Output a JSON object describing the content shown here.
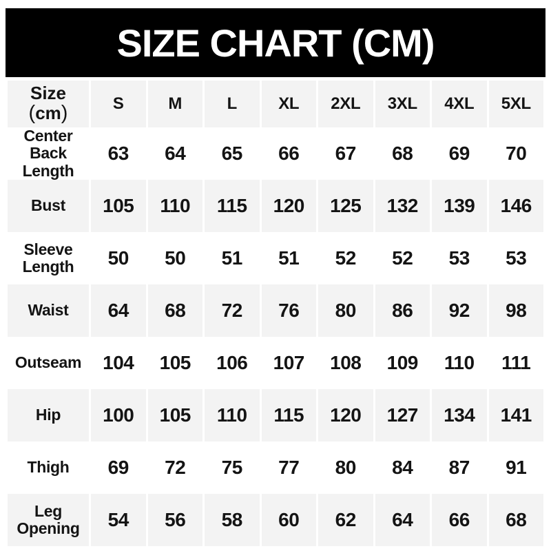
{
  "banner": {
    "title": "SIZE CHART (CM)"
  },
  "table": {
    "corner": {
      "line1": "Size",
      "open": "(",
      "unit": "cm",
      "close": ")"
    }
  },
  "chart_data": {
    "type": "table",
    "title": "SIZE CHART (CM)",
    "unit": "cm",
    "corner_label": "Size (cm)",
    "columns": [
      "S",
      "M",
      "L",
      "XL",
      "2XL",
      "3XL",
      "4XL",
      "5XL"
    ],
    "rows": [
      {
        "label": "Center Back Length",
        "values": [
          63,
          64,
          65,
          66,
          67,
          68,
          69,
          70
        ]
      },
      {
        "label": "Bust",
        "values": [
          105,
          110,
          115,
          120,
          125,
          132,
          139,
          146
        ]
      },
      {
        "label": "Sleeve Length",
        "values": [
          50,
          50,
          51,
          51,
          52,
          52,
          53,
          53
        ]
      },
      {
        "label": "Waist",
        "values": [
          64,
          68,
          72,
          76,
          80,
          86,
          92,
          98
        ]
      },
      {
        "label": "Outseam",
        "values": [
          104,
          105,
          106,
          107,
          108,
          109,
          110,
          111
        ]
      },
      {
        "label": "Hip",
        "values": [
          100,
          105,
          110,
          115,
          120,
          127,
          134,
          141
        ]
      },
      {
        "label": "Thigh",
        "values": [
          69,
          72,
          75,
          77,
          80,
          84,
          87,
          91
        ]
      },
      {
        "label": "Leg Opening",
        "values": [
          54,
          56,
          58,
          60,
          62,
          64,
          66,
          68
        ]
      }
    ],
    "layout": {
      "striped": true,
      "stripe_note": "header row and every 2nd data row are light gray; thin white gaps between columns",
      "grid": false,
      "legend": false
    },
    "colors": {
      "banner_bg": "#000000",
      "banner_text": "#ffffff",
      "stripe_bg": "#f3f3f3",
      "row_bg": "#ffffff",
      "text": "#141414"
    }
  }
}
